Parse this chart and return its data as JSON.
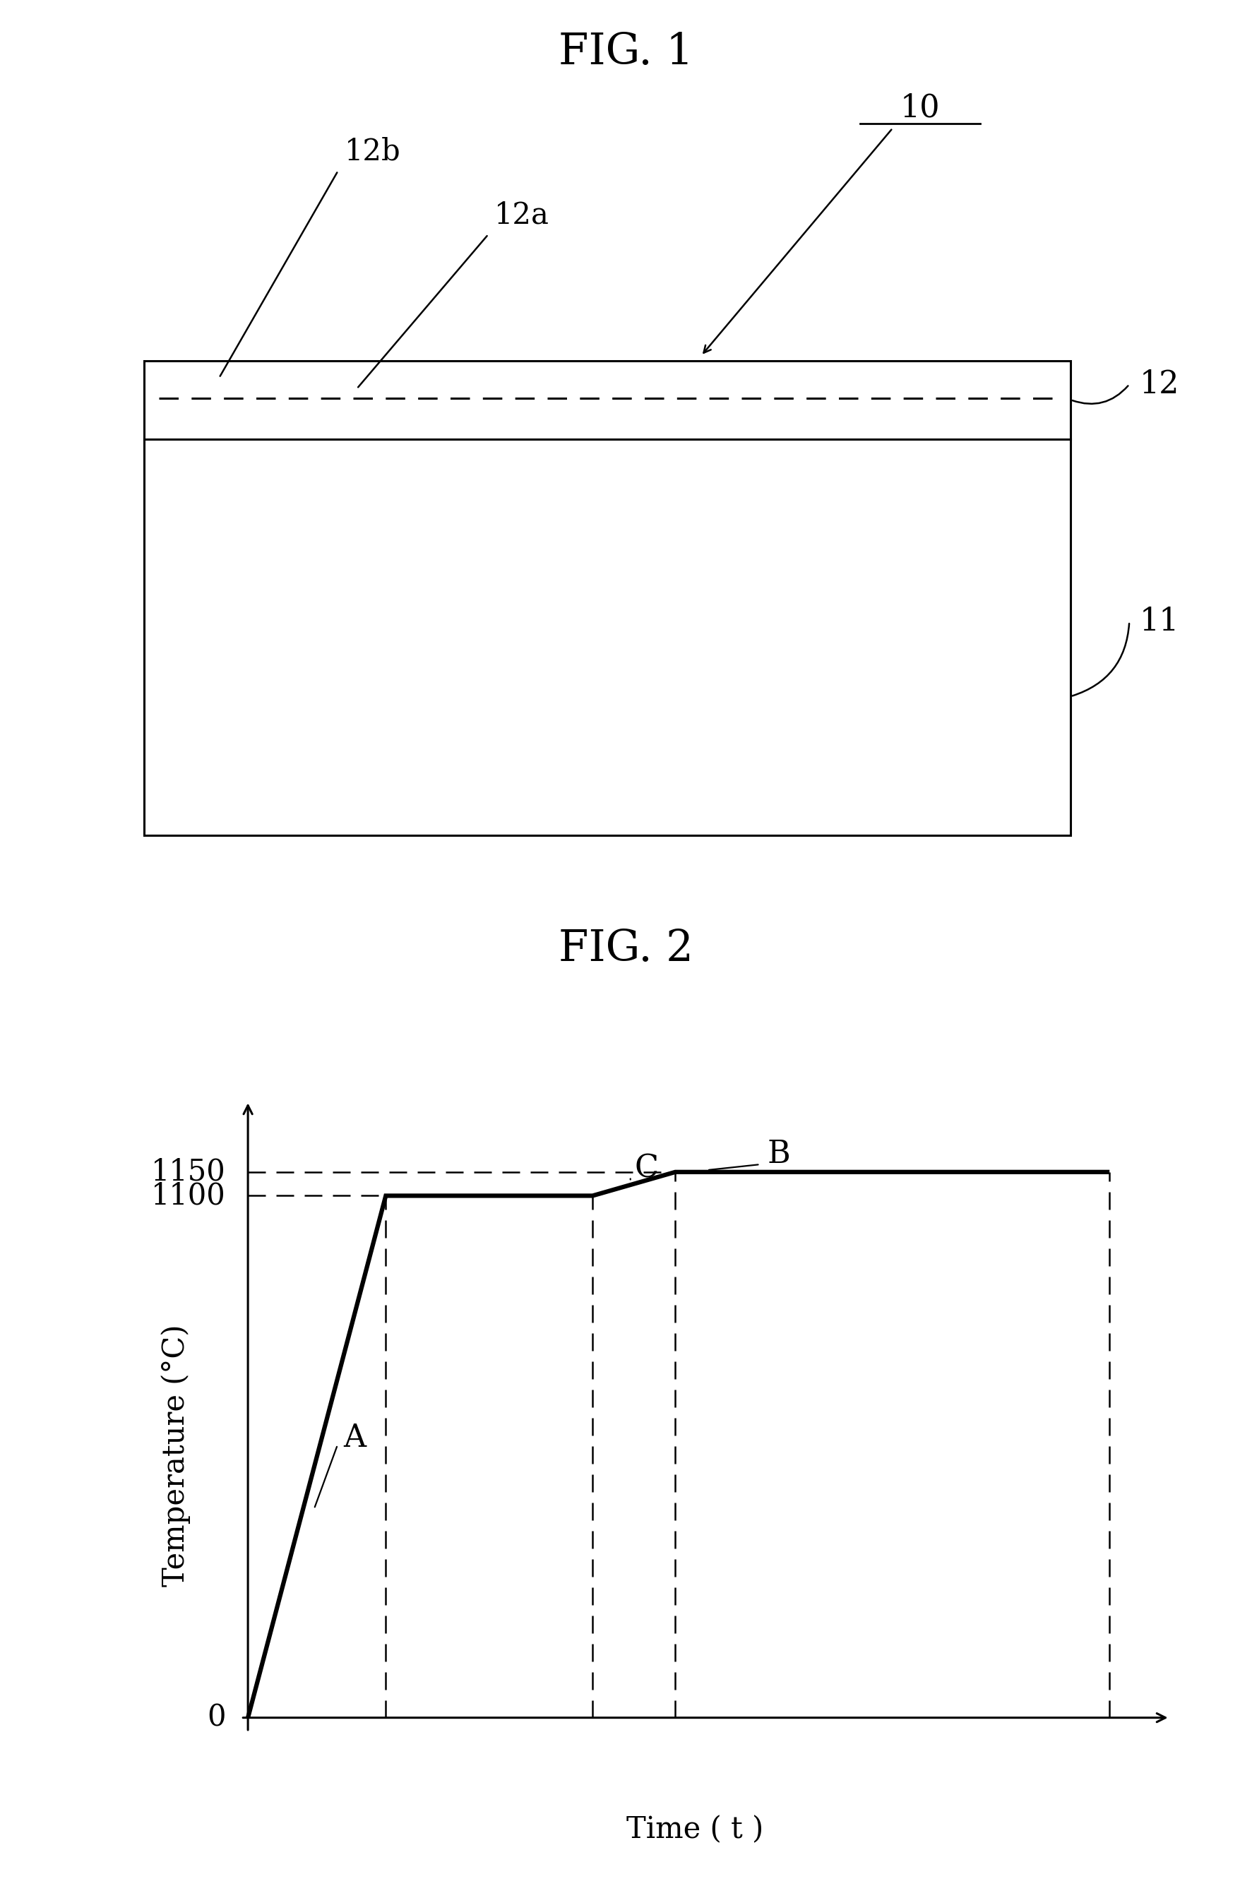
{
  "fig1_title": "FIG. 1",
  "fig2_title": "FIG. 2",
  "background_color": "#ffffff",
  "text_color": "#000000",
  "graph_thick_lw": 4.5,
  "dashed_lw": 1.8,
  "temp_1100": 1100,
  "temp_1150": 1150,
  "t1": 2.0,
  "t2": 5.0,
  "t3": 6.2,
  "t4": 9.0,
  "t5": 12.5,
  "xlabel": "Time ( t )",
  "ylabel": "Temperature (°C)",
  "label_A": "A",
  "label_B": "B",
  "label_C": "C",
  "title_fontsize": 44,
  "label_fontsize": 32,
  "tick_fontsize": 30,
  "axis_label_fontsize": 30
}
